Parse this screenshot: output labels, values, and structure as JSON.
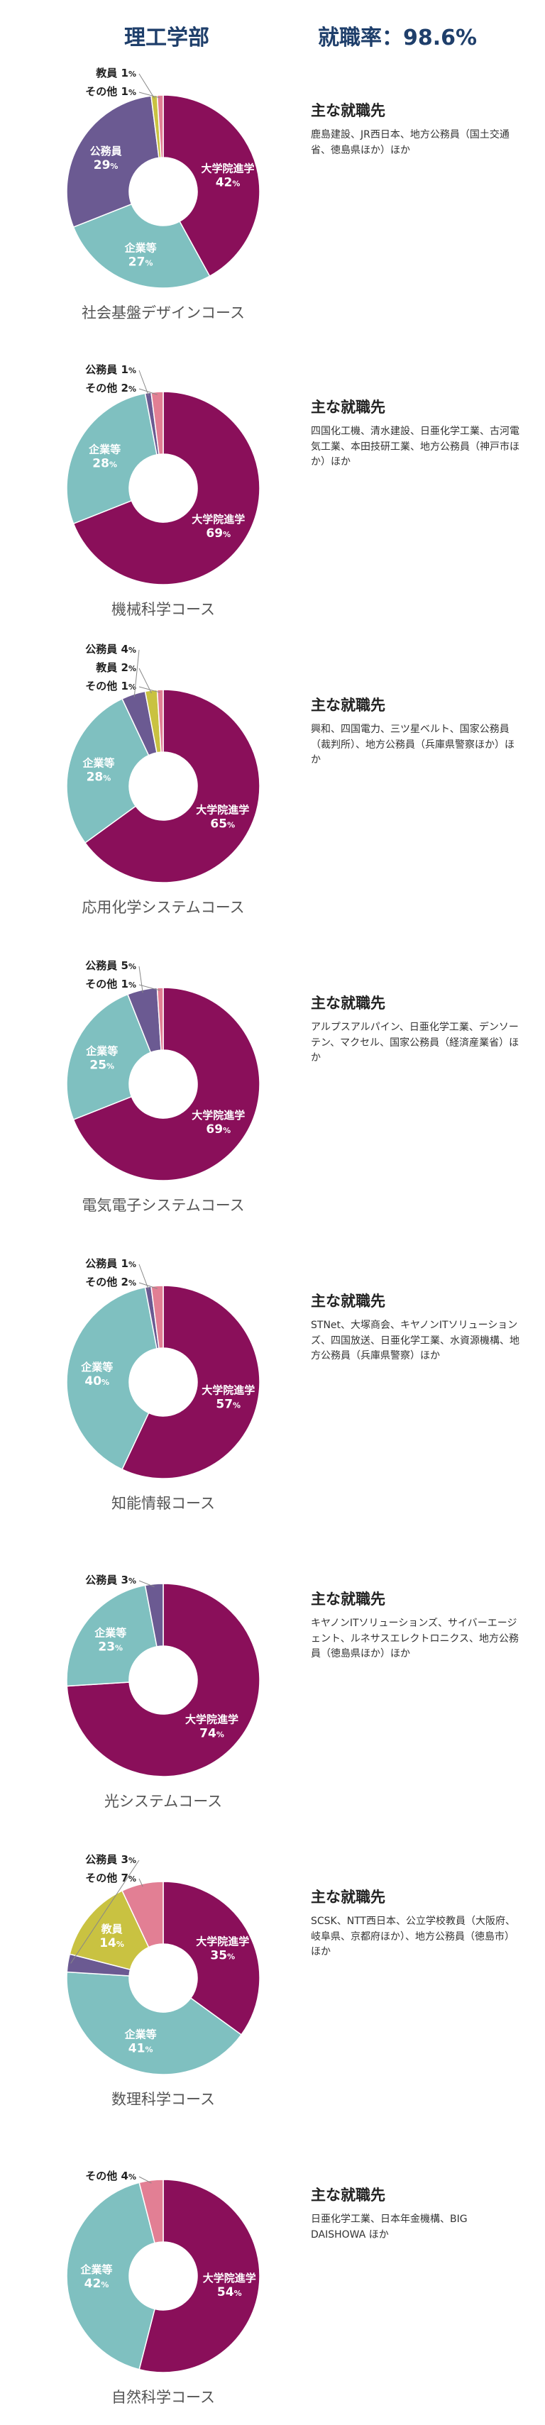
{
  "header": {
    "title": "理工学部",
    "rate": "就職率：98.6%"
  },
  "section_heading": "主な就職先",
  "colors": {
    "大学院進学": "#8a0f5a",
    "企業等": "#7fc0c0",
    "公務員": "#6b5a92",
    "教員": "#c9c241",
    "その他": "#e27f94"
  },
  "chart_data": [
    {
      "type": "pie",
      "title": "社会基盤デザインコース",
      "categories": [
        "大学院進学",
        "企業等",
        "公務員",
        "教員",
        "その他"
      ],
      "values": [
        42,
        27,
        29,
        1,
        1
      ],
      "employers": "鹿島建設、JR西日本、地方公務員（国土交通省、徳島県ほか）ほか"
    },
    {
      "type": "pie",
      "title": "機械科学コース",
      "categories": [
        "大学院進学",
        "企業等",
        "公務員",
        "その他"
      ],
      "values": [
        69,
        28,
        1,
        2
      ],
      "employers": "四国化工機、清水建設、日亜化学工業、古河電気工業、本田技研工業、地方公務員（神戸市ほか）ほか"
    },
    {
      "type": "pie",
      "title": "応用化学システムコース",
      "categories": [
        "大学院進学",
        "企業等",
        "公務員",
        "教員",
        "その他"
      ],
      "values": [
        65,
        28,
        4,
        2,
        1
      ],
      "employers": "興和、四国電力、三ツ星ベルト、国家公務員（裁判所）、地方公務員（兵庫県警察ほか）ほか"
    },
    {
      "type": "pie",
      "title": "電気電子システムコース",
      "categories": [
        "大学院進学",
        "企業等",
        "公務員",
        "その他"
      ],
      "values": [
        69,
        25,
        5,
        1
      ],
      "employers": "アルプスアルパイン、日亜化学工業、デンソーテン、マクセル、国家公務員（経済産業省）ほか"
    },
    {
      "type": "pie",
      "title": "知能情報コース",
      "categories": [
        "大学院進学",
        "企業等",
        "公務員",
        "その他"
      ],
      "values": [
        57,
        40,
        1,
        2
      ],
      "employers": "STNet、大塚商会、キヤノンITソリューションズ、四国放送、日亜化学工業、水資源機構、地方公務員（兵庫県警察）ほか"
    },
    {
      "type": "pie",
      "title": "光システムコース",
      "categories": [
        "大学院進学",
        "企業等",
        "公務員"
      ],
      "values": [
        74,
        23,
        3
      ],
      "employers": "キヤノンITソリューションズ、サイバーエージェント、ルネサスエレクトロニクス、地方公務員（徳島県ほか）ほか"
    },
    {
      "type": "pie",
      "title": "数理科学コース",
      "categories": [
        "大学院進学",
        "企業等",
        "公務員",
        "教員",
        "その他"
      ],
      "values": [
        35,
        41,
        3,
        14,
        7
      ],
      "employers": "SCSK、NTT西日本、公立学校教員（大阪府、岐阜県、京都府ほか）、地方公務員（徳島市）ほか"
    },
    {
      "type": "pie",
      "title": "自然科学コース",
      "categories": [
        "大学院進学",
        "企業等",
        "その他"
      ],
      "values": [
        54,
        42,
        4
      ],
      "employers": "日亜化学工業、日本年金機構、BIG DAISHOWA ほか"
    }
  ]
}
